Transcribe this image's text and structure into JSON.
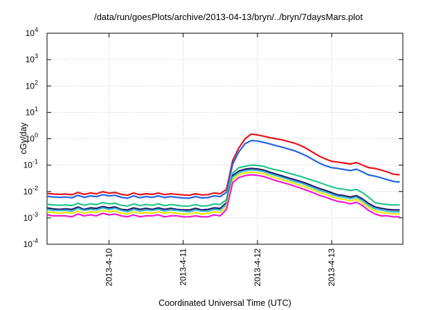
{
  "chart_data": {
    "type": "line",
    "title": "/data/run/goesPlots/archive/2013-04-13/bryn/../bryn/7daysMars.plot",
    "xlabel": "Coordinated Universal Time (UTC)",
    "ylabel": "cGy/day",
    "yscale": "log",
    "ylim": [
      0.0001,
      10000
    ],
    "y_ticks": [
      {
        "base": "10",
        "exp": "4"
      },
      {
        "base": "10",
        "exp": "3"
      },
      {
        "base": "10",
        "exp": "2"
      },
      {
        "base": "10",
        "exp": "1"
      },
      {
        "base": "10",
        "exp": "0"
      },
      {
        "base": "10",
        "exp": "-1"
      },
      {
        "base": "10",
        "exp": "-2"
      },
      {
        "base": "10",
        "exp": "-3"
      },
      {
        "base": "10",
        "exp": "-4"
      }
    ],
    "xlim": [
      "2013-04-09T04:00",
      "2013-04-13T23:00"
    ],
    "x_tick_labels": [
      "2013-4-10",
      "2013-4-11",
      "2013-4-12",
      "2013-4-13"
    ],
    "grid": true,
    "x": [
      "2013-04-09T04:00",
      "2013-04-09T06:00",
      "2013-04-09T08:00",
      "2013-04-09T10:00",
      "2013-04-09T12:00",
      "2013-04-09T14:00",
      "2013-04-09T16:00",
      "2013-04-09T18:00",
      "2013-04-09T20:00",
      "2013-04-09T22:00",
      "2013-04-10T00:00",
      "2013-04-10T02:00",
      "2013-04-10T04:00",
      "2013-04-10T06:00",
      "2013-04-10T08:00",
      "2013-04-10T10:00",
      "2013-04-10T12:00",
      "2013-04-10T14:00",
      "2013-04-10T16:00",
      "2013-04-10T18:00",
      "2013-04-10T20:00",
      "2013-04-10T22:00",
      "2013-04-11T00:00",
      "2013-04-11T02:00",
      "2013-04-11T04:00",
      "2013-04-11T06:00",
      "2013-04-11T08:00",
      "2013-04-11T10:00",
      "2013-04-11T12:00",
      "2013-04-11T14:00",
      "2013-04-11T16:00",
      "2013-04-11T18:00",
      "2013-04-11T20:00",
      "2013-04-11T22:00",
      "2013-04-12T00:00",
      "2013-04-12T02:00",
      "2013-04-12T04:00",
      "2013-04-12T06:00",
      "2013-04-12T08:00",
      "2013-04-12T10:00",
      "2013-04-12T12:00",
      "2013-04-12T14:00",
      "2013-04-12T16:00",
      "2013-04-12T18:00",
      "2013-04-12T20:00",
      "2013-04-12T22:00",
      "2013-04-13T00:00",
      "2013-04-13T02:00",
      "2013-04-13T04:00",
      "2013-04-13T06:00",
      "2013-04-13T08:00",
      "2013-04-13T10:00",
      "2013-04-13T12:00",
      "2013-04-13T14:00",
      "2013-04-13T16:00",
      "2013-04-13T18:00",
      "2013-04-13T20:00",
      "2013-04-13T22:00"
    ],
    "series": [
      {
        "color": "#e8101a",
        "values": [
          0.0085,
          0.008,
          0.0078,
          0.008,
          0.0075,
          0.0092,
          0.0078,
          0.0088,
          0.0082,
          0.0098,
          0.0087,
          0.0092,
          0.0078,
          0.0072,
          0.0088,
          0.0075,
          0.0082,
          0.0078,
          0.0088,
          0.0076,
          0.0082,
          0.0078,
          0.0074,
          0.0072,
          0.0082,
          0.0074,
          0.0076,
          0.0088,
          0.0082,
          0.012,
          0.15,
          0.45,
          1.0,
          1.5,
          1.4,
          1.25,
          1.1,
          1.0,
          0.9,
          0.78,
          0.68,
          0.55,
          0.42,
          0.3,
          0.22,
          0.17,
          0.14,
          0.13,
          0.12,
          0.11,
          0.125,
          0.1,
          0.08,
          0.075,
          0.065,
          0.055,
          0.045,
          0.043
        ]
      },
      {
        "color": "#1e63e0",
        "values": [
          0.0066,
          0.0062,
          0.006,
          0.0062,
          0.0058,
          0.0072,
          0.006,
          0.0068,
          0.0064,
          0.0076,
          0.0068,
          0.0072,
          0.006,
          0.0056,
          0.0068,
          0.0058,
          0.0064,
          0.006,
          0.0068,
          0.0059,
          0.0064,
          0.006,
          0.0057,
          0.0056,
          0.0064,
          0.0057,
          0.0059,
          0.0068,
          0.0064,
          0.0094,
          0.11,
          0.32,
          0.65,
          0.85,
          0.82,
          0.73,
          0.64,
          0.55,
          0.48,
          0.41,
          0.35,
          0.28,
          0.22,
          0.16,
          0.12,
          0.095,
          0.08,
          0.075,
          0.068,
          0.062,
          0.07,
          0.055,
          0.042,
          0.038,
          0.033,
          0.028,
          0.024,
          0.023
        ]
      },
      {
        "color": "#20c78a",
        "values": [
          0.0033,
          0.0031,
          0.003,
          0.0031,
          0.0029,
          0.0036,
          0.003,
          0.0034,
          0.0032,
          0.0038,
          0.0034,
          0.0036,
          0.003,
          0.0028,
          0.0034,
          0.0029,
          0.0032,
          0.003,
          0.0034,
          0.0029,
          0.0032,
          0.003,
          0.0028,
          0.0028,
          0.0032,
          0.0028,
          0.0029,
          0.0034,
          0.0032,
          0.005,
          0.05,
          0.08,
          0.09,
          0.1,
          0.098,
          0.09,
          0.075,
          0.066,
          0.058,
          0.05,
          0.043,
          0.037,
          0.031,
          0.026,
          0.022,
          0.018,
          0.015,
          0.013,
          0.012,
          0.011,
          0.012,
          0.009,
          0.006,
          0.0038,
          0.0034,
          0.0032,
          0.0031,
          0.0031
        ]
      },
      {
        "color": "#1d1d6b",
        "values": [
          0.0024,
          0.0022,
          0.0021,
          0.0022,
          0.0021,
          0.0026,
          0.0021,
          0.0024,
          0.0023,
          0.0027,
          0.0024,
          0.0026,
          0.0021,
          0.002,
          0.0024,
          0.0021,
          0.0023,
          0.0021,
          0.0024,
          0.0021,
          0.0023,
          0.0021,
          0.002,
          0.002,
          0.0023,
          0.002,
          0.0021,
          0.0024,
          0.0023,
          0.0038,
          0.04,
          0.06,
          0.07,
          0.075,
          0.072,
          0.065,
          0.054,
          0.046,
          0.039,
          0.033,
          0.028,
          0.024,
          0.02,
          0.016,
          0.013,
          0.011,
          0.009,
          0.0075,
          0.007,
          0.0062,
          0.007,
          0.0052,
          0.0035,
          0.0026,
          0.0023,
          0.0021,
          0.002,
          0.002
        ]
      },
      {
        "color": "#3bb8d6",
        "values": [
          0.0021,
          0.0019,
          0.0019,
          0.0019,
          0.0018,
          0.0023,
          0.0019,
          0.0021,
          0.002,
          0.0024,
          0.0021,
          0.0023,
          0.0019,
          0.0017,
          0.0021,
          0.0018,
          0.002,
          0.0019,
          0.0021,
          0.0018,
          0.002,
          0.0019,
          0.0018,
          0.0017,
          0.002,
          0.0018,
          0.0018,
          0.0021,
          0.002,
          0.0033,
          0.035,
          0.052,
          0.061,
          0.066,
          0.063,
          0.057,
          0.047,
          0.04,
          0.034,
          0.029,
          0.024,
          0.021,
          0.017,
          0.014,
          0.011,
          0.0095,
          0.0078,
          0.0065,
          0.006,
          0.0054,
          0.006,
          0.0045,
          0.003,
          0.0022,
          0.002,
          0.0018,
          0.0017,
          0.0017
        ]
      },
      {
        "color": "#e6e600",
        "values": [
          0.0017,
          0.0016,
          0.0015,
          0.0016,
          0.0015,
          0.0018,
          0.0015,
          0.0017,
          0.0016,
          0.0019,
          0.0017,
          0.0018,
          0.0015,
          0.0014,
          0.0017,
          0.0015,
          0.0016,
          0.0015,
          0.0017,
          0.0015,
          0.0016,
          0.0015,
          0.0014,
          0.0014,
          0.0016,
          0.0014,
          0.0015,
          0.0017,
          0.0016,
          0.0027,
          0.028,
          0.043,
          0.05,
          0.054,
          0.052,
          0.047,
          0.039,
          0.033,
          0.028,
          0.024,
          0.02,
          0.017,
          0.014,
          0.0115,
          0.0092,
          0.0078,
          0.0064,
          0.0054,
          0.005,
          0.0044,
          0.005,
          0.0037,
          0.0025,
          0.0018,
          0.0016,
          0.0015,
          0.0014,
          0.0014
        ]
      },
      {
        "color": "#ee18d8",
        "values": [
          0.0013,
          0.0012,
          0.0012,
          0.0012,
          0.0011,
          0.0014,
          0.0012,
          0.0013,
          0.0012,
          0.0015,
          0.0013,
          0.0014,
          0.0012,
          0.0011,
          0.0013,
          0.0011,
          0.0012,
          0.0012,
          0.0013,
          0.0011,
          0.0012,
          0.0012,
          0.0011,
          0.0011,
          0.0012,
          0.0011,
          0.0011,
          0.0013,
          0.0012,
          0.0021,
          0.022,
          0.034,
          0.04,
          0.043,
          0.041,
          0.037,
          0.031,
          0.026,
          0.022,
          0.019,
          0.016,
          0.0135,
          0.011,
          0.009,
          0.0072,
          0.0061,
          0.005,
          0.0042,
          0.0039,
          0.0034,
          0.0039,
          0.0029,
          0.0019,
          0.0014,
          0.0012,
          0.0012,
          0.0011,
          0.0011
        ]
      }
    ]
  }
}
